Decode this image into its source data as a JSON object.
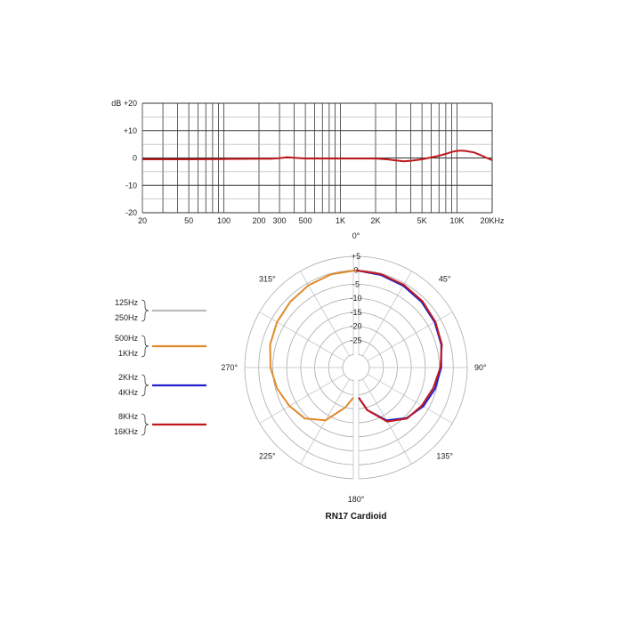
{
  "chart_data": [
    {
      "type": "line",
      "xscale": "log",
      "xlim": [
        20,
        20000
      ],
      "ylim": [
        -20,
        20
      ],
      "ylabel": "dB",
      "xticks": [
        20,
        50,
        100,
        200,
        300,
        500,
        1000,
        2000,
        5000,
        10000,
        20000
      ],
      "xtick_labels": [
        "20",
        "50",
        "100",
        "200",
        "300",
        "500",
        "1K",
        "2K",
        "5K",
        "10K",
        "20KHz"
      ],
      "yticks": [
        20,
        10,
        0,
        -10,
        -20
      ],
      "ytick_labels": [
        "dB +20",
        "+10",
        "0",
        "-10",
        "-20"
      ],
      "grid": true,
      "line_color": "#c0181c",
      "x": [
        20,
        50,
        100,
        200,
        250,
        300,
        350,
        400,
        500,
        700,
        1000,
        1500,
        2000,
        2500,
        3000,
        3500,
        4000,
        5000,
        6000,
        7000,
        8000,
        9000,
        10000,
        11000,
        12000,
        14000,
        16000,
        18000,
        20000
      ],
      "y": [
        -0.5,
        -0.5,
        -0.4,
        -0.3,
        -0.3,
        -0.1,
        0.3,
        0.1,
        -0.2,
        -0.2,
        -0.2,
        -0.2,
        -0.2,
        -0.5,
        -0.9,
        -1.2,
        -1.0,
        -0.5,
        0.2,
        0.8,
        1.5,
        2.2,
        2.6,
        2.7,
        2.5,
        2.0,
        1.0,
        0.0,
        -0.8
      ]
    },
    {
      "type": "polar",
      "title": "RN17 Cardioid",
      "rlim": [
        -30,
        5
      ],
      "rings": [
        5,
        0,
        -5,
        -10,
        -15,
        -20,
        -25
      ],
      "ring_labels": [
        "+5",
        "0",
        "-5",
        "-10",
        "-15",
        "-20",
        "-25"
      ],
      "angle_labels": [
        {
          "deg": 0,
          "text": "0°"
        },
        {
          "deg": 45,
          "text": "45°"
        },
        {
          "deg": 90,
          "text": "90°"
        },
        {
          "deg": 135,
          "text": "135°"
        },
        {
          "deg": 180,
          "text": "180°"
        },
        {
          "deg": 225,
          "text": "225°"
        },
        {
          "deg": 270,
          "text": "270°"
        },
        {
          "deg": 315,
          "text": "315°"
        }
      ],
      "series": [
        {
          "name": "500Hz / 1KHz",
          "color": "#e08a2c",
          "side": "left",
          "angles": [
            0,
            15,
            30,
            45,
            60,
            75,
            90,
            105,
            120,
            135,
            150,
            165,
            175
          ],
          "values": [
            0,
            -0.3,
            -0.8,
            -1.5,
            -2.2,
            -3.0,
            -4.2,
            -5.6,
            -7.3,
            -9.0,
            -13.0,
            -20.0,
            -24.0
          ]
        },
        {
          "name": "2KHz / 4KHz",
          "color": "#2020d0",
          "side": "right",
          "angles": [
            0,
            15,
            30,
            45,
            60,
            75,
            90,
            105,
            120,
            135,
            150,
            165,
            175
          ],
          "values": [
            0,
            -0.5,
            -1.0,
            -1.6,
            -2.3,
            -3.2,
            -4.3,
            -5.5,
            -7.0,
            -9.2,
            -13.0,
            -19.0,
            -24.0
          ]
        },
        {
          "name": "8KHz / 16KHz",
          "color": "#c0181c",
          "side": "right",
          "angles": [
            0,
            15,
            30,
            45,
            60,
            75,
            90,
            105,
            120,
            135,
            150,
            165,
            175
          ],
          "values": [
            0,
            -0.2,
            -0.6,
            -1.2,
            -2.0,
            -3.0,
            -4.6,
            -6.2,
            -7.6,
            -9.0,
            -12.5,
            -19.0,
            -24.0
          ]
        }
      ],
      "legend": [
        {
          "top": "125Hz",
          "bottom": "250Hz",
          "color": "#bbbbbb"
        },
        {
          "top": "500Hz",
          "bottom": "1KHz",
          "color": "#e08a2c"
        },
        {
          "top": "2KHz",
          "bottom": "4KHz",
          "color": "#2020d0"
        },
        {
          "top": "8KHz",
          "bottom": "16KHz",
          "color": "#c0181c"
        }
      ]
    }
  ]
}
